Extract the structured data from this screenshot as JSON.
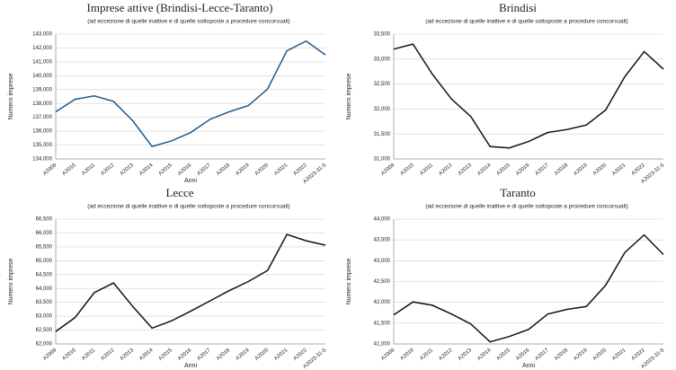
{
  "chart_data": [
    {
      "type": "line",
      "title": "Imprese attive (Brindisi-Lecce-Taranto)",
      "subtitle": "(ad eccezione di quelle inattive e di quelle sottoposte a procedure concorsuali)",
      "ylabel": "Numero imprese",
      "xlabel": "Anni",
      "categories": [
        "A2009",
        "A2010",
        "A2011",
        "A2012",
        "A2013",
        "A2014",
        "A2015",
        "A2016",
        "A2017",
        "A2018",
        "A2019",
        "A2020",
        "A2021",
        "A2022",
        "A2023-31-5"
      ],
      "values": [
        137400,
        138300,
        138550,
        138150,
        136750,
        134900,
        135300,
        135900,
        136850,
        137400,
        137850,
        139050,
        141800,
        142500,
        141500
      ],
      "color": "#1f5a8c",
      "grid": true,
      "ylim": [
        134000,
        143000
      ],
      "yticks": [
        {
          "value": 134000,
          "label": "134,000"
        },
        {
          "value": 135000,
          "label": "135,000"
        },
        {
          "value": 136000,
          "label": "136,000"
        },
        {
          "value": 137000,
          "label": "137,000"
        },
        {
          "value": 138000,
          "label": "138,000"
        },
        {
          "value": 139000,
          "label": "139,000"
        },
        {
          "value": 140000,
          "label": "140,000"
        },
        {
          "value": 141000,
          "label": "141,000"
        },
        {
          "value": 142000,
          "label": "142,000"
        },
        {
          "value": 143000,
          "label": "143,000"
        }
      ]
    },
    {
      "type": "line",
      "title": "Brindisi",
      "subtitle": "(ad eccezione di quelle inattive e di quelle sottoposte a procedure concorsuali)",
      "ylabel": "Numero imprese",
      "categories": [
        "A2009",
        "A2010",
        "A2011",
        "A2012",
        "A2013",
        "A2014",
        "A2015",
        "A2016",
        "A2017",
        "A2018",
        "A2019",
        "A2020",
        "A2021",
        "A2022",
        "A2023-31-5"
      ],
      "values": [
        33200,
        33300,
        32700,
        32200,
        31850,
        31250,
        31220,
        31350,
        31530,
        31590,
        31680,
        31980,
        32650,
        33150,
        32800
      ],
      "color": "#111111",
      "grid": true,
      "ylim": [
        31000,
        33500
      ],
      "yticks": [
        {
          "value": 31000,
          "label": "31,000"
        },
        {
          "value": 31500,
          "label": "31,500"
        },
        {
          "value": 32000,
          "label": "32,000"
        },
        {
          "value": 32500,
          "label": "32,500"
        },
        {
          "value": 33000,
          "label": "33,000"
        },
        {
          "value": 33500,
          "label": "33,500"
        }
      ]
    },
    {
      "type": "line",
      "title": "Lecce",
      "subtitle": "(ad eccezione di quelle inattive e di quelle sottoposte a procedure concorsuali)",
      "ylabel": "Numero imprese",
      "xlabel": "Anni",
      "categories": [
        "A2009",
        "A2010",
        "A2011",
        "A2012",
        "A2013",
        "A2014",
        "A2015",
        "A2016",
        "A2017",
        "A2018",
        "A2019",
        "A2020",
        "A2021",
        "A2022",
        "A2023-31-5"
      ],
      "values": [
        62450,
        62950,
        63850,
        64200,
        63350,
        62570,
        62830,
        63180,
        63550,
        63920,
        64250,
        64650,
        65950,
        65720,
        65560
      ],
      "color": "#111111",
      "grid": true,
      "ylim": [
        62000,
        66500
      ],
      "yticks": [
        {
          "value": 62000,
          "label": "62,000"
        },
        {
          "value": 62500,
          "label": "62,500"
        },
        {
          "value": 63000,
          "label": "63,000"
        },
        {
          "value": 63500,
          "label": "63,500"
        },
        {
          "value": 64000,
          "label": "64,000"
        },
        {
          "value": 64500,
          "label": "64,500"
        },
        {
          "value": 65000,
          "label": "65,000"
        },
        {
          "value": 65500,
          "label": "65,500"
        },
        {
          "value": 66000,
          "label": "66,000"
        },
        {
          "value": 66500,
          "label": "66,500"
        }
      ]
    },
    {
      "type": "line",
      "title": "Taranto",
      "subtitle": "(ad eccezione di quelle inattive e di quelle sottoposte a procedure concorsuali)",
      "ylabel": "Numero imprese",
      "xlabel": "Anni",
      "categories": [
        "A2009",
        "A2010",
        "A2011",
        "A2012",
        "A2013",
        "A2014",
        "A2015",
        "A2016",
        "A2017",
        "A2018",
        "A2019",
        "A2020",
        "A2021",
        "A2022",
        "A2023-31-5"
      ],
      "values": [
        41700,
        42010,
        41930,
        41720,
        41480,
        41050,
        41180,
        41350,
        41720,
        41830,
        41900,
        42410,
        43200,
        43620,
        43150
      ],
      "color": "#111111",
      "grid": true,
      "ylim": [
        41000,
        44000
      ],
      "yticks": [
        {
          "value": 41000,
          "label": "41,000"
        },
        {
          "value": 41500,
          "label": "41,500"
        },
        {
          "value": 42000,
          "label": "42,000"
        },
        {
          "value": 42500,
          "label": "42,500"
        },
        {
          "value": 43000,
          "label": "43,000"
        },
        {
          "value": 43500,
          "label": "43,500"
        },
        {
          "value": 44000,
          "label": "44,000"
        }
      ]
    }
  ]
}
